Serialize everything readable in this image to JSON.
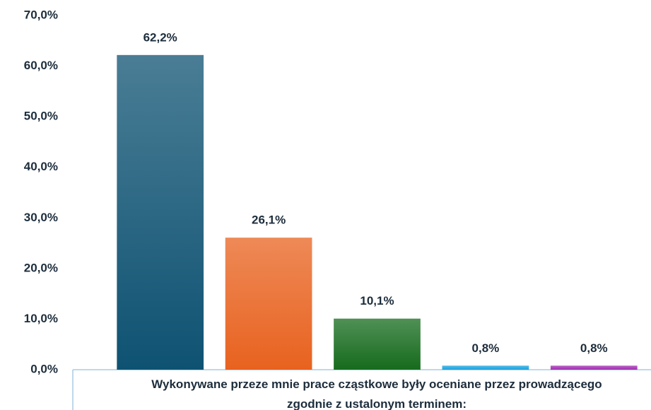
{
  "chart_data": {
    "type": "bar",
    "x_label": "Wykonywane przeze mnie prace cząstkowe były oceniane przez prowadzącego zgodnie z ustalonym terminem:",
    "categories": [
      null,
      null,
      null,
      null,
      null
    ],
    "values": [
      62.2,
      26.1,
      10.1,
      0.8,
      0.8
    ],
    "value_labels": [
      "62,2%",
      "26,1%",
      "10,1%",
      "0,8%",
      "0,8%"
    ],
    "colors": [
      "#0e5272",
      "#e8621f",
      "#166b1d",
      "#1aa3e0",
      "#a22eb3"
    ],
    "ylim": [
      0,
      70
    ],
    "yticks": [
      {
        "value": 0,
        "label": "0,0%"
      },
      {
        "value": 10,
        "label": "10,0%"
      },
      {
        "value": 20,
        "label": "20,0%"
      },
      {
        "value": 30,
        "label": "30,0%"
      },
      {
        "value": 40,
        "label": "40,0%"
      },
      {
        "value": 50,
        "label": "50,0%"
      },
      {
        "value": 60,
        "label": "60,0%"
      },
      {
        "value": 70,
        "label": "70,0%"
      }
    ],
    "grid": false
  }
}
